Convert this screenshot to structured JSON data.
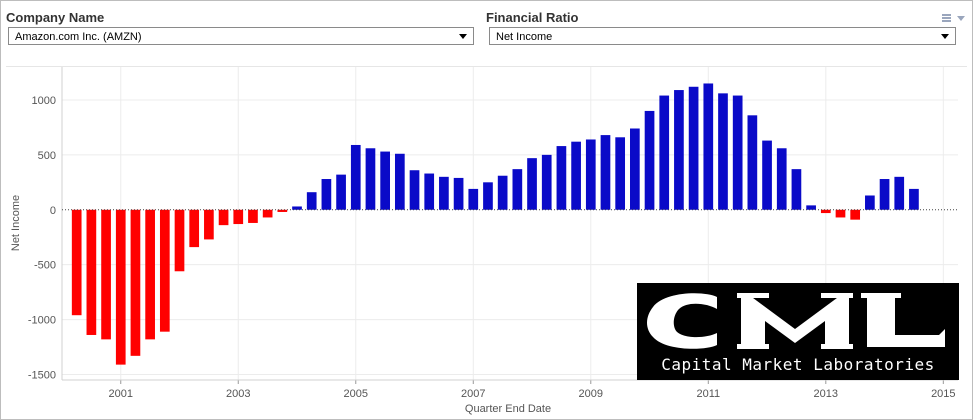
{
  "controls": {
    "company": {
      "label": "Company Name",
      "value": "Amazon.com Inc. (AMZN)"
    },
    "ratio": {
      "label": "Financial Ratio",
      "value": "Net Income"
    }
  },
  "colors": {
    "positive": "#0a0ac8",
    "negative": "#ff0000",
    "grid": "#ececec",
    "axis": "#555555"
  },
  "logo": {
    "text": "CML",
    "tagline": "Capital Market Laboratories"
  },
  "chart_data": {
    "type": "bar",
    "xlabel": "Quarter End Date",
    "ylabel": "Net Income",
    "xlim": [
      2000.0,
      2015.25
    ],
    "ylim": [
      -1550,
      1300
    ],
    "yticks": [
      1000,
      500,
      0,
      -500,
      -1000,
      -1500
    ],
    "xticks": [
      2001,
      2003,
      2005,
      2007,
      2009,
      2011,
      2013,
      2015
    ],
    "grid": true,
    "x": [
      2000.25,
      2000.5,
      2000.75,
      2001.0,
      2001.25,
      2001.5,
      2001.75,
      2002.0,
      2002.25,
      2002.5,
      2002.75,
      2003.0,
      2003.25,
      2003.5,
      2003.75,
      2004.0,
      2004.25,
      2004.5,
      2004.75,
      2005.0,
      2005.25,
      2005.5,
      2005.75,
      2006.0,
      2006.25,
      2006.5,
      2006.75,
      2007.0,
      2007.25,
      2007.5,
      2007.75,
      2008.0,
      2008.25,
      2008.5,
      2008.75,
      2009.0,
      2009.25,
      2009.5,
      2009.75,
      2010.0,
      2010.25,
      2010.5,
      2010.75,
      2011.0,
      2011.25,
      2011.5,
      2011.75,
      2012.0,
      2012.25,
      2012.5,
      2012.75,
      2013.0,
      2013.25,
      2013.5,
      2013.75,
      2014.0,
      2014.25,
      2014.5,
      2014.75
    ],
    "values": [
      -960,
      -1140,
      -1180,
      -1410,
      -1330,
      -1180,
      -1110,
      -560,
      -340,
      -270,
      -140,
      -130,
      -120,
      -70,
      -20,
      30,
      160,
      280,
      320,
      590,
      560,
      530,
      510,
      360,
      330,
      300,
      290,
      190,
      250,
      310,
      370,
      470,
      500,
      580,
      620,
      640,
      680,
      660,
      740,
      900,
      1040,
      1090,
      1120,
      1150,
      1060,
      1040,
      860,
      630,
      560,
      370,
      40,
      -30,
      -70,
      -90,
      130,
      280,
      300,
      190,
      0
    ]
  }
}
